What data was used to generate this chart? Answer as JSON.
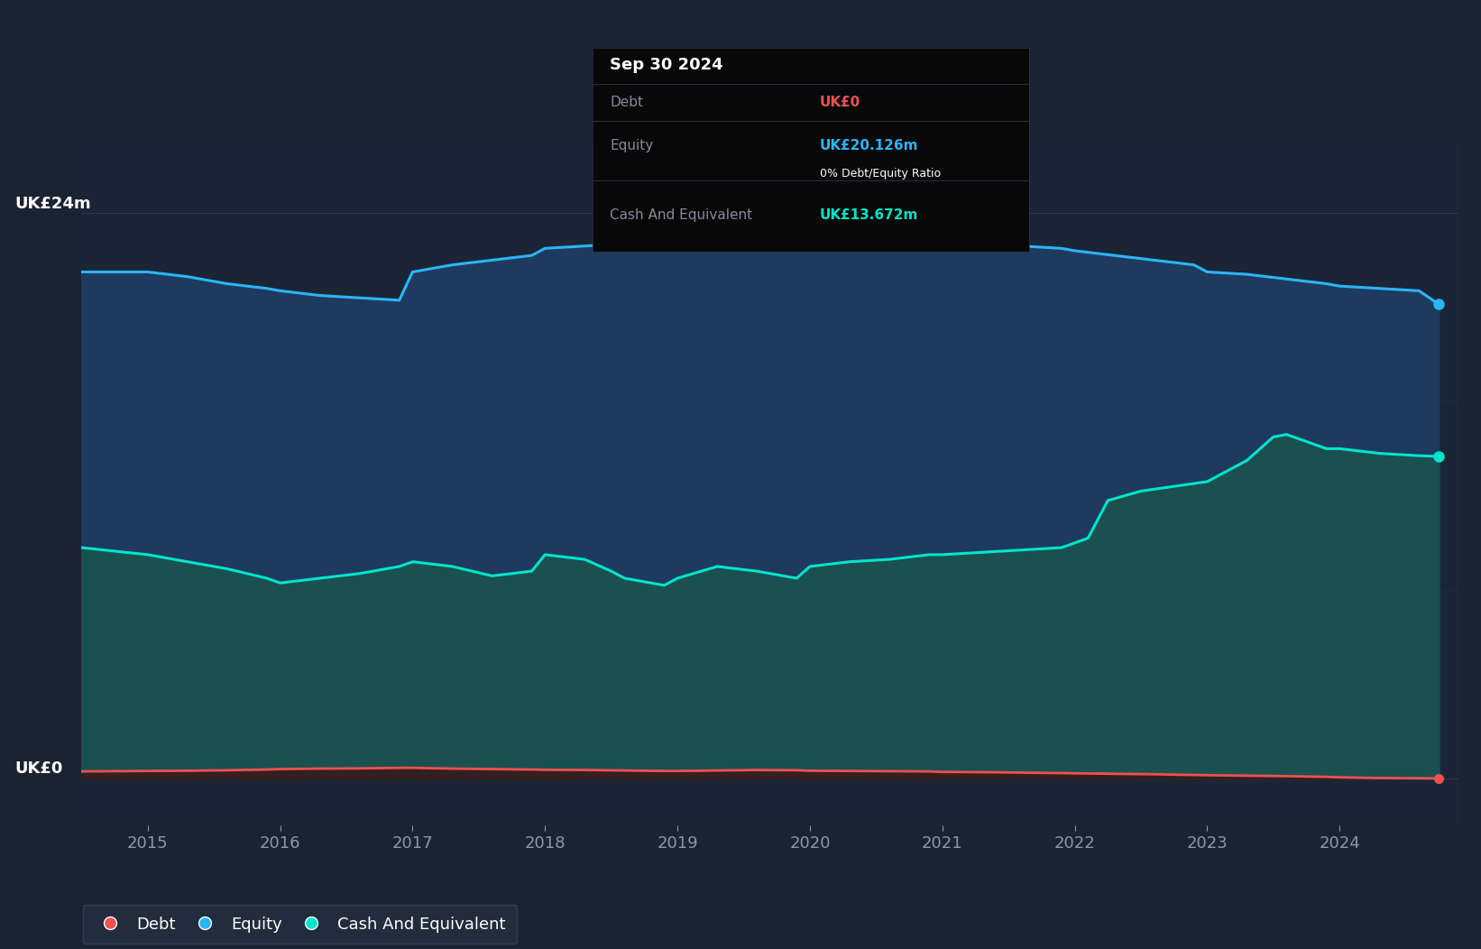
{
  "background_color": "#1b2333",
  "plot_bg_color": "#1b2535",
  "equity_color": "#29b6f6",
  "equity_fill": "#1e3a5f",
  "cash_color": "#00e5cc",
  "cash_fill_top": "#1a5050",
  "cash_fill_bot": "#0d3030",
  "debt_color": "#f05050",
  "debt_fill": "#3a1515",
  "grid_color": "#2a3550",
  "tick_color": "#8899aa",
  "tooltip_bg": "#080808",
  "tooltip_title": "Sep 30 2024",
  "tooltip_debt_label": "Debt",
  "tooltip_debt_value": "UK£0",
  "tooltip_debt_color": "#f05050",
  "tooltip_equity_label": "Equity",
  "tooltip_equity_value": "UK£20.126m",
  "tooltip_equity_color": "#29b6f6",
  "tooltip_ratio_text": "0% Debt/Equity Ratio",
  "tooltip_cash_label": "Cash And Equivalent",
  "tooltip_cash_value": "UK£13.672m",
  "tooltip_cash_color": "#00e5cc",
  "legend_bg": "#252f3f",
  "legend_edge": "#3a4555",
  "equity_data_x": [
    2014.5,
    2015.0,
    2015.3,
    2015.6,
    2015.9,
    2016.0,
    2016.3,
    2016.6,
    2016.9,
    2017.0,
    2017.3,
    2017.6,
    2017.9,
    2018.0,
    2018.3,
    2018.6,
    2018.9,
    2019.0,
    2019.3,
    2019.6,
    2019.9,
    2020.0,
    2020.3,
    2020.6,
    2020.9,
    2021.0,
    2021.3,
    2021.6,
    2021.9,
    2022.0,
    2022.3,
    2022.6,
    2022.9,
    2023.0,
    2023.3,
    2023.6,
    2023.9,
    2024.0,
    2024.3,
    2024.6,
    2024.75
  ],
  "equity_data_y": [
    21.5,
    21.5,
    21.3,
    21.0,
    20.8,
    20.7,
    20.5,
    20.4,
    20.3,
    21.5,
    21.8,
    22.0,
    22.2,
    22.5,
    22.6,
    22.7,
    22.8,
    22.8,
    22.9,
    23.0,
    23.0,
    23.0,
    22.9,
    22.8,
    22.7,
    22.8,
    22.7,
    22.6,
    22.5,
    22.4,
    22.2,
    22.0,
    21.8,
    21.5,
    21.4,
    21.2,
    21.0,
    20.9,
    20.8,
    20.7,
    20.126
  ],
  "cash_data_x": [
    2014.5,
    2015.0,
    2015.3,
    2015.6,
    2015.9,
    2016.0,
    2016.3,
    2016.6,
    2016.9,
    2017.0,
    2017.3,
    2017.6,
    2017.9,
    2018.0,
    2018.3,
    2018.5,
    2018.6,
    2018.9,
    2019.0,
    2019.3,
    2019.6,
    2019.9,
    2020.0,
    2020.3,
    2020.6,
    2020.9,
    2021.0,
    2021.3,
    2021.6,
    2021.9,
    2022.0,
    2022.1,
    2022.25,
    2022.5,
    2022.75,
    2023.0,
    2023.3,
    2023.5,
    2023.6,
    2023.75,
    2023.9,
    2024.0,
    2024.3,
    2024.6,
    2024.75
  ],
  "cash_data_y": [
    9.8,
    9.5,
    9.2,
    8.9,
    8.5,
    8.3,
    8.5,
    8.7,
    9.0,
    9.2,
    9.0,
    8.6,
    8.8,
    9.5,
    9.3,
    8.8,
    8.5,
    8.2,
    8.5,
    9.0,
    8.8,
    8.5,
    9.0,
    9.2,
    9.3,
    9.5,
    9.5,
    9.6,
    9.7,
    9.8,
    10.0,
    10.2,
    11.8,
    12.2,
    12.4,
    12.6,
    13.5,
    14.5,
    14.6,
    14.3,
    14.0,
    14.0,
    13.8,
    13.7,
    13.672
  ],
  "debt_data_x": [
    2014.5,
    2015.0,
    2015.3,
    2015.6,
    2015.9,
    2016.0,
    2016.3,
    2016.6,
    2016.9,
    2017.0,
    2017.3,
    2017.6,
    2017.9,
    2018.0,
    2018.3,
    2018.6,
    2018.9,
    2019.0,
    2019.3,
    2019.6,
    2019.9,
    2020.0,
    2020.3,
    2020.6,
    2020.9,
    2021.0,
    2021.3,
    2021.6,
    2021.9,
    2022.0,
    2022.3,
    2022.6,
    2022.9,
    2023.0,
    2023.3,
    2023.6,
    2023.9,
    2024.0,
    2024.3,
    2024.6,
    2024.75
  ],
  "debt_data_y": [
    0.3,
    0.32,
    0.33,
    0.35,
    0.38,
    0.4,
    0.42,
    0.43,
    0.45,
    0.45,
    0.42,
    0.4,
    0.38,
    0.37,
    0.36,
    0.34,
    0.32,
    0.32,
    0.34,
    0.36,
    0.35,
    0.33,
    0.32,
    0.31,
    0.3,
    0.28,
    0.27,
    0.25,
    0.23,
    0.22,
    0.2,
    0.18,
    0.15,
    0.14,
    0.12,
    0.1,
    0.07,
    0.05,
    0.02,
    0.01,
    0.0
  ],
  "xlim": [
    2014.5,
    2024.9
  ],
  "ylim": [
    -2.0,
    27
  ],
  "y_zero": 0,
  "y_top": 24,
  "xtick_positions": [
    2015,
    2016,
    2017,
    2018,
    2019,
    2020,
    2021,
    2022,
    2023,
    2024
  ],
  "xtick_labels": [
    "2015",
    "2016",
    "2017",
    "2018",
    "2019",
    "2020",
    "2021",
    "2022",
    "2023",
    "2024"
  ],
  "dot_x": 2024.75,
  "dot_equity_y": 20.126,
  "dot_cash_y": 13.672,
  "dot_debt_y": 0.0
}
